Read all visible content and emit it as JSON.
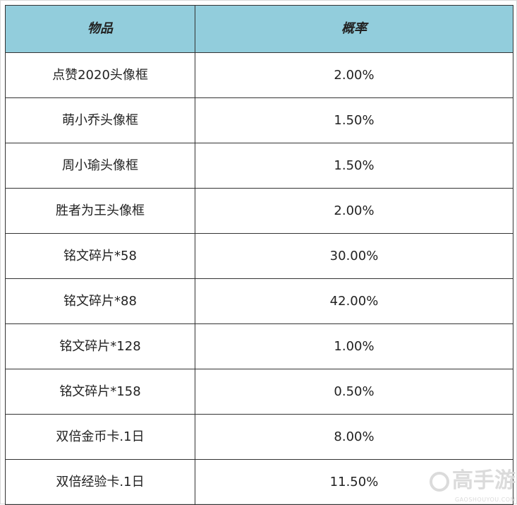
{
  "table": {
    "headers": [
      "物品",
      "概率"
    ],
    "rows": [
      {
        "item": "点赞2020头像框",
        "prob": "2.00%"
      },
      {
        "item": "萌小乔头像框",
        "prob": "1.50%"
      },
      {
        "item": "周小瑜头像框",
        "prob": "1.50%"
      },
      {
        "item": "胜者为王头像框",
        "prob": "2.00%"
      },
      {
        "item": "铭文碎片*58",
        "prob": "30.00%"
      },
      {
        "item": "铭文碎片*88",
        "prob": "42.00%"
      },
      {
        "item": "铭文碎片*128",
        "prob": "1.00%"
      },
      {
        "item": "铭文碎片*158",
        "prob": "0.50%"
      },
      {
        "item": "双倍金币卡.1日",
        "prob": "8.00%"
      },
      {
        "item": "双倍经验卡.1日",
        "prob": "11.50%"
      }
    ]
  },
  "header_color": "#92cddc",
  "watermark": {
    "text": "高手游",
    "url": "GAOSHOUYOU.COM"
  }
}
